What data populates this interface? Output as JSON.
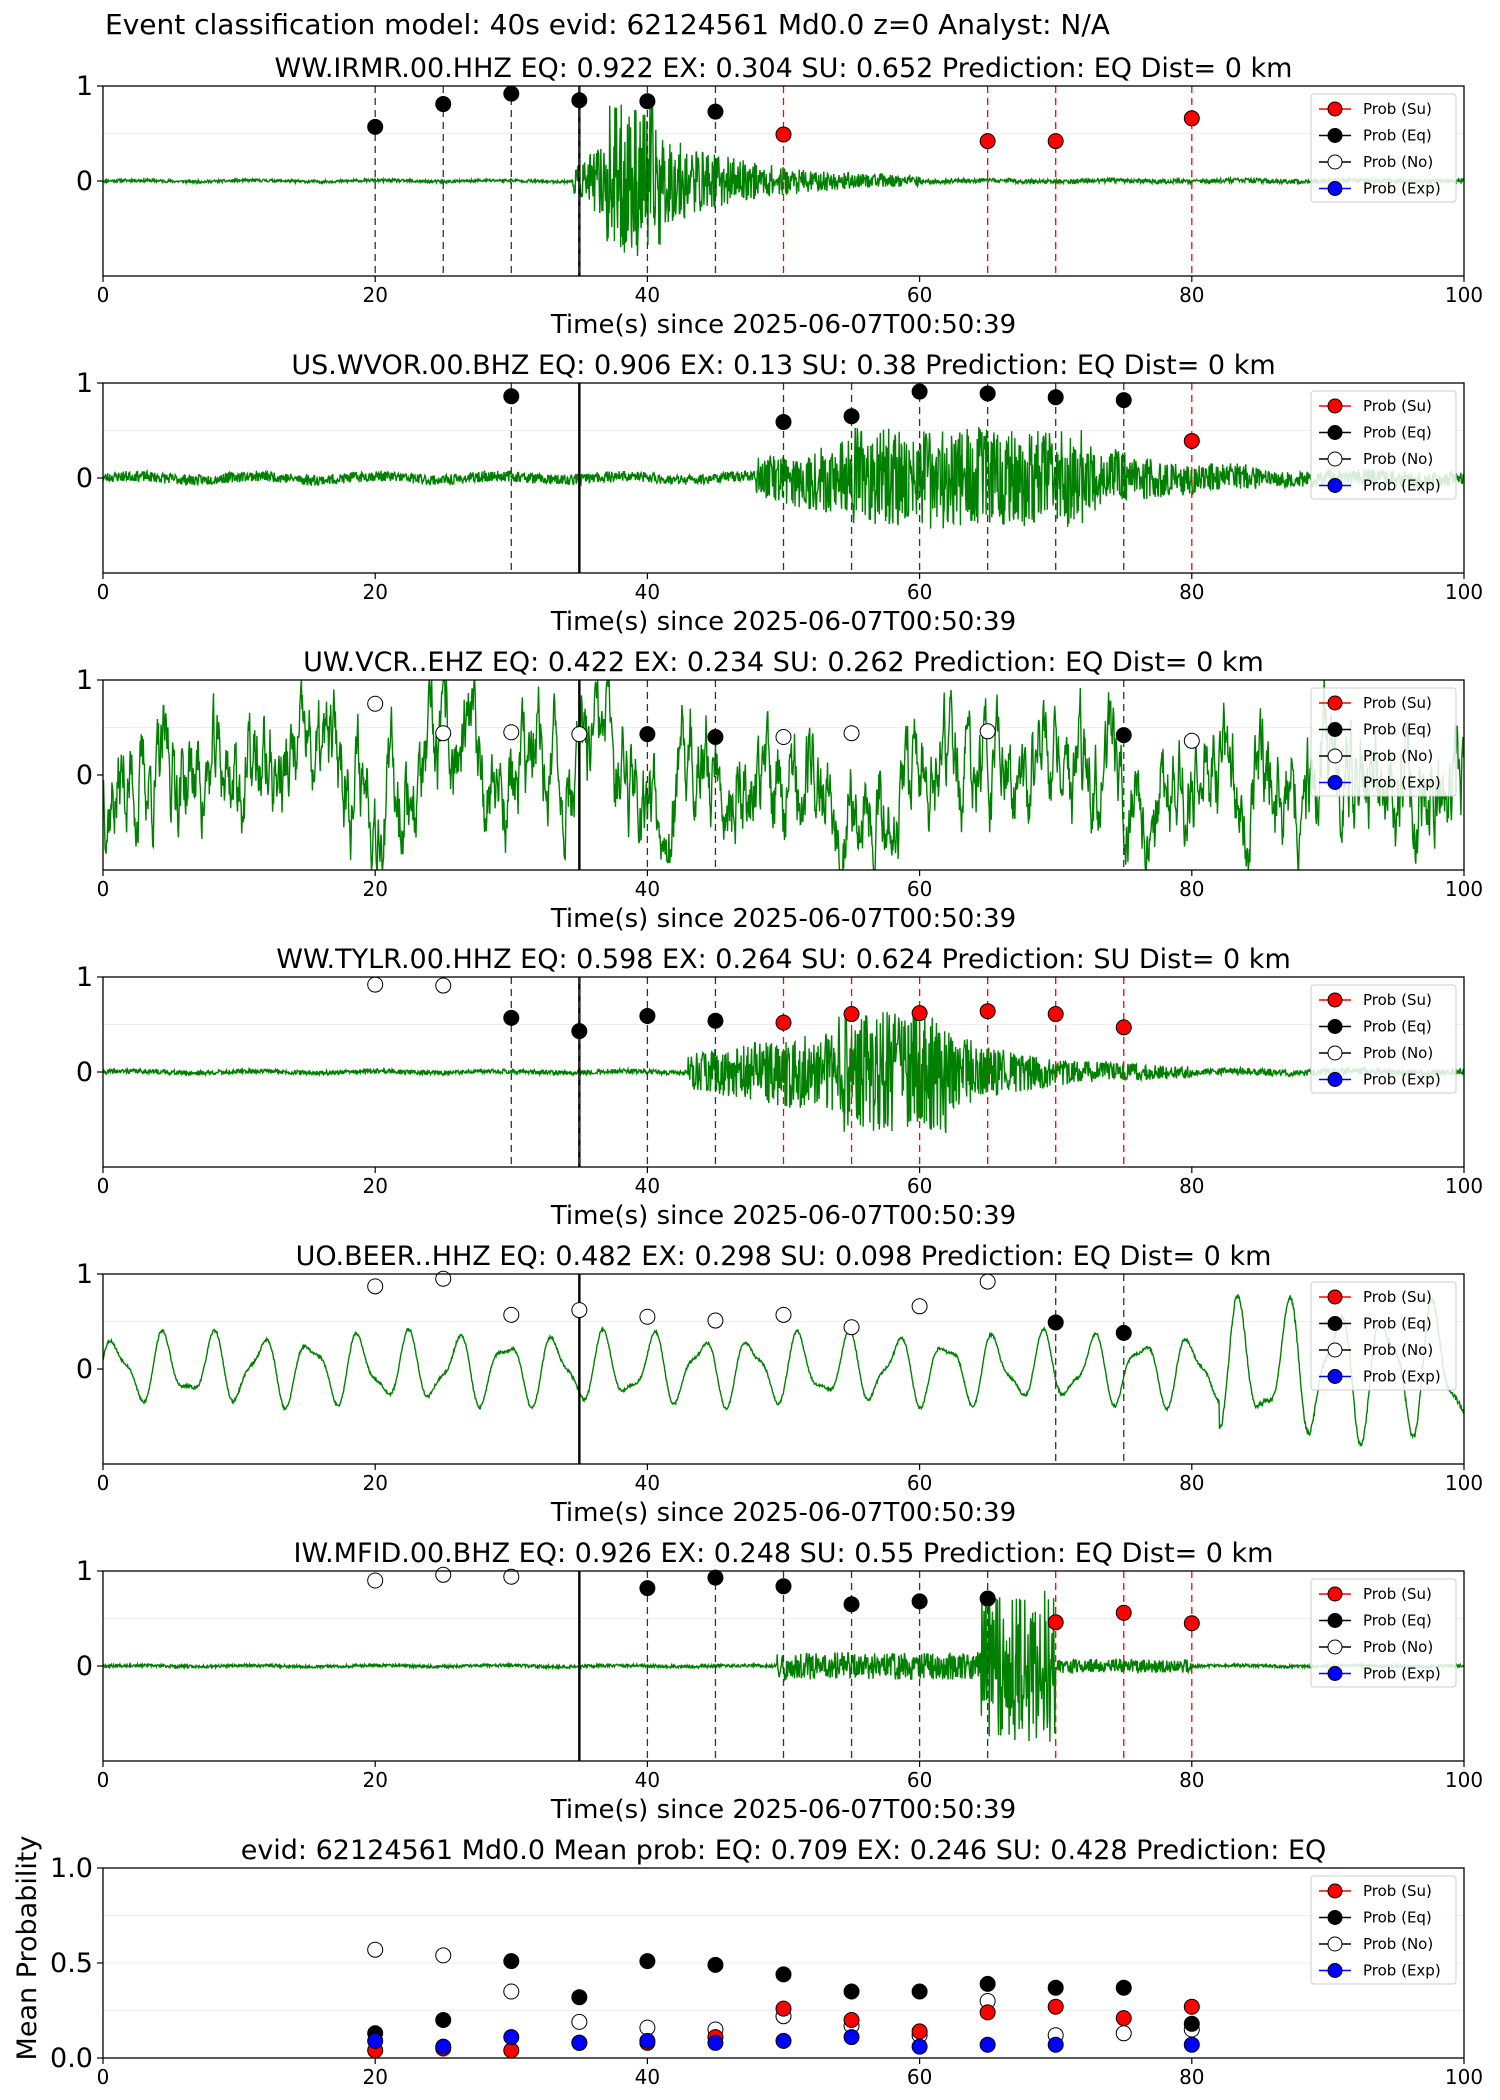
{
  "suptitle": "Event classification model: 40s evid: 62124561 Md0.0 z=0 Analyst: N/A",
  "legend_labels": [
    "Prob (Su)",
    "Prob (Eq)",
    "Prob (No)",
    "Prob (Exp)"
  ],
  "colors": {
    "su": "#ff0000",
    "eq": "#000000",
    "no": "#ffffff",
    "exp": "#0000ff",
    "waveform": "#008000"
  },
  "chart_data": [
    {
      "type": "scatter",
      "title": "WW.IRMR.00.HHZ   EQ: 0.922  EX: 0.304  SU: 0.652   Prediction: EQ    Dist= 0 km",
      "xlabel": "Time(s) since 2025-06-07T00:50:39",
      "xlim": [
        0,
        100
      ],
      "ylim": [
        -1,
        1
      ],
      "xticks": [
        "0",
        "20",
        "40",
        "60",
        "80",
        "100"
      ],
      "yticks": [
        "0",
        "1"
      ],
      "legend": "top-right",
      "waveform": {
        "style": "event",
        "start": 34.5,
        "peak_start": 37,
        "peak_end": 41,
        "decay_end": 60,
        "peak_amp": 1.0,
        "mid_amp": 0.15,
        "noise_amp": 0.02,
        "seed": 11
      },
      "marker_line": 35,
      "points": [
        {
          "x": 20,
          "y": 0.57,
          "cls": "eq"
        },
        {
          "x": 25,
          "y": 0.81,
          "cls": "eq"
        },
        {
          "x": 30,
          "y": 0.92,
          "cls": "eq"
        },
        {
          "x": 35,
          "y": 0.85,
          "cls": "eq"
        },
        {
          "x": 40,
          "y": 0.84,
          "cls": "eq"
        },
        {
          "x": 45,
          "y": 0.73,
          "cls": "eq"
        },
        {
          "x": 50,
          "y": 0.49,
          "cls": "su"
        },
        {
          "x": 65,
          "y": 0.42,
          "cls": "su"
        },
        {
          "x": 70,
          "y": 0.42,
          "cls": "su"
        },
        {
          "x": 80,
          "y": 0.66,
          "cls": "su"
        }
      ]
    },
    {
      "type": "scatter",
      "title": "US.WVOR.00.BHZ   EQ: 0.906  EX: 0.13  SU: 0.38   Prediction: EQ    Dist= 0 km",
      "xlabel": "Time(s) since 2025-06-07T00:50:39",
      "xlim": [
        0,
        100
      ],
      "ylim": [
        -1,
        1
      ],
      "xticks": [
        "0",
        "20",
        "40",
        "60",
        "80",
        "100"
      ],
      "yticks": [
        "0",
        "1"
      ],
      "legend": "top-right",
      "waveform": {
        "style": "event",
        "start": 48,
        "peak_start": 55,
        "peak_end": 72,
        "decay_end": 85,
        "peak_amp": 0.65,
        "mid_amp": 0.25,
        "noise_amp": 0.07,
        "seed": 23
      },
      "marker_line": 35,
      "points": [
        {
          "x": 30,
          "y": 0.86,
          "cls": "eq"
        },
        {
          "x": 50,
          "y": 0.59,
          "cls": "eq"
        },
        {
          "x": 55,
          "y": 0.65,
          "cls": "eq"
        },
        {
          "x": 60,
          "y": 0.91,
          "cls": "eq"
        },
        {
          "x": 65,
          "y": 0.89,
          "cls": "eq"
        },
        {
          "x": 70,
          "y": 0.85,
          "cls": "eq"
        },
        {
          "x": 75,
          "y": 0.82,
          "cls": "eq"
        },
        {
          "x": 80,
          "y": 0.39,
          "cls": "su"
        }
      ]
    },
    {
      "type": "scatter",
      "title": "UW.VCR..EHZ   EQ: 0.422  EX: 0.234  SU: 0.262   Prediction: EQ    Dist= 0 km",
      "xlabel": "Time(s) since 2025-06-07T00:50:39",
      "xlim": [
        0,
        100
      ],
      "ylim": [
        -1,
        1
      ],
      "xticks": [
        "0",
        "20",
        "40",
        "60",
        "80",
        "100"
      ],
      "yticks": [
        "0",
        "1"
      ],
      "legend": "top-right",
      "waveform": {
        "style": "noise",
        "noise_amp": 0.55,
        "seed": 37
      },
      "marker_line": 35,
      "points": [
        {
          "x": 20,
          "y": 0.75,
          "cls": "no"
        },
        {
          "x": 25,
          "y": 0.44,
          "cls": "no"
        },
        {
          "x": 30,
          "y": 0.45,
          "cls": "no"
        },
        {
          "x": 35,
          "y": 0.43,
          "cls": "no"
        },
        {
          "x": 40,
          "y": 0.43,
          "cls": "eq"
        },
        {
          "x": 45,
          "y": 0.4,
          "cls": "eq"
        },
        {
          "x": 50,
          "y": 0.4,
          "cls": "no"
        },
        {
          "x": 55,
          "y": 0.44,
          "cls": "no"
        },
        {
          "x": 65,
          "y": 0.46,
          "cls": "no"
        },
        {
          "x": 75,
          "y": 0.42,
          "cls": "eq"
        },
        {
          "x": 80,
          "y": 0.36,
          "cls": "no"
        }
      ]
    },
    {
      "type": "scatter",
      "title": "WW.TYLR.00.HHZ   EQ: 0.598  EX: 0.264  SU: 0.624   Prediction: SU    Dist= 0 km",
      "xlabel": "Time(s) since 2025-06-07T00:50:39",
      "xlim": [
        0,
        100
      ],
      "ylim": [
        -1,
        1
      ],
      "xticks": [
        "0",
        "20",
        "40",
        "60",
        "80",
        "100"
      ],
      "yticks": [
        "0",
        "1"
      ],
      "legend": "top-right",
      "waveform": {
        "style": "event",
        "start": 43,
        "peak_start": 54,
        "peak_end": 62,
        "decay_end": 80,
        "peak_amp": 0.8,
        "mid_amp": 0.25,
        "noise_amp": 0.03,
        "seed": 41
      },
      "marker_line": 35,
      "points": [
        {
          "x": 20,
          "y": 0.92,
          "cls": "no"
        },
        {
          "x": 25,
          "y": 0.91,
          "cls": "no"
        },
        {
          "x": 30,
          "y": 0.57,
          "cls": "eq"
        },
        {
          "x": 35,
          "y": 0.43,
          "cls": "eq"
        },
        {
          "x": 40,
          "y": 0.59,
          "cls": "eq"
        },
        {
          "x": 45,
          "y": 0.54,
          "cls": "eq"
        },
        {
          "x": 50,
          "y": 0.52,
          "cls": "su"
        },
        {
          "x": 55,
          "y": 0.61,
          "cls": "su"
        },
        {
          "x": 60,
          "y": 0.62,
          "cls": "su"
        },
        {
          "x": 65,
          "y": 0.64,
          "cls": "su"
        },
        {
          "x": 70,
          "y": 0.61,
          "cls": "su"
        },
        {
          "x": 75,
          "y": 0.47,
          "cls": "su"
        }
      ]
    },
    {
      "type": "scatter",
      "title": "UO.BEER..HHZ   EQ: 0.482  EX: 0.298  SU: 0.098   Prediction: EQ    Dist= 0 km",
      "xlabel": "Time(s) since 2025-06-07T00:50:39",
      "xlim": [
        0,
        100
      ],
      "ylim": [
        -1,
        1
      ],
      "xticks": [
        "0",
        "20",
        "40",
        "60",
        "80",
        "100"
      ],
      "yticks": [
        "0",
        "1"
      ],
      "legend": "top-right",
      "waveform": {
        "style": "sine",
        "noise_amp": 0.35,
        "seed": 53
      },
      "marker_line": 35,
      "points": [
        {
          "x": 20,
          "y": 0.87,
          "cls": "no"
        },
        {
          "x": 25,
          "y": 0.95,
          "cls": "no"
        },
        {
          "x": 30,
          "y": 0.57,
          "cls": "no"
        },
        {
          "x": 35,
          "y": 0.62,
          "cls": "no"
        },
        {
          "x": 40,
          "y": 0.55,
          "cls": "no"
        },
        {
          "x": 45,
          "y": 0.51,
          "cls": "no"
        },
        {
          "x": 50,
          "y": 0.57,
          "cls": "no"
        },
        {
          "x": 55,
          "y": 0.44,
          "cls": "no"
        },
        {
          "x": 60,
          "y": 0.66,
          "cls": "no"
        },
        {
          "x": 65,
          "y": 0.92,
          "cls": "no"
        },
        {
          "x": 70,
          "y": 0.49,
          "cls": "eq"
        },
        {
          "x": 75,
          "y": 0.38,
          "cls": "eq"
        }
      ]
    },
    {
      "type": "scatter",
      "title": "IW.MFID.00.BHZ   EQ: 0.926  EX: 0.248  SU: 0.55   Prediction: EQ    Dist= 0 km",
      "xlabel": "Time(s) since 2025-06-07T00:50:39",
      "xlim": [
        0,
        100
      ],
      "ylim": [
        -1,
        1
      ],
      "xticks": [
        "0",
        "20",
        "40",
        "60",
        "80",
        "100"
      ],
      "yticks": [
        "0",
        "1"
      ],
      "legend": "top-right",
      "waveform": {
        "style": "two-event",
        "start": 49.5,
        "peak_start": 64.5,
        "peak_end": 70,
        "decay_end": 80,
        "peak_amp": 1.0,
        "mid_amp": 0.18,
        "noise_amp": 0.02,
        "seed": 67
      },
      "marker_line": 35,
      "points": [
        {
          "x": 20,
          "y": 0.9,
          "cls": "no"
        },
        {
          "x": 25,
          "y": 0.96,
          "cls": "no"
        },
        {
          "x": 30,
          "y": 0.94,
          "cls": "no"
        },
        {
          "x": 40,
          "y": 0.82,
          "cls": "eq"
        },
        {
          "x": 45,
          "y": 0.93,
          "cls": "eq"
        },
        {
          "x": 50,
          "y": 0.84,
          "cls": "eq"
        },
        {
          "x": 55,
          "y": 0.65,
          "cls": "eq"
        },
        {
          "x": 60,
          "y": 0.68,
          "cls": "eq"
        },
        {
          "x": 65,
          "y": 0.71,
          "cls": "eq"
        },
        {
          "x": 70,
          "y": 0.46,
          "cls": "su"
        },
        {
          "x": 75,
          "y": 0.56,
          "cls": "su"
        },
        {
          "x": 80,
          "y": 0.45,
          "cls": "su"
        }
      ]
    },
    {
      "type": "scatter",
      "title": "evid: 62124561  Md0.0   Mean prob:   EQ: 0.709  EX: 0.246  SU: 0.428   Prediction: EQ",
      "xlabel": "",
      "ylabel": "Mean Probability",
      "xlim": [
        0,
        100
      ],
      "ylim": [
        0,
        1
      ],
      "xticks": [
        "0",
        "20",
        "40",
        "60",
        "80",
        "100"
      ],
      "yticks": [
        "0.0",
        "0.5",
        "1.0"
      ],
      "legend": "top-right",
      "x": [
        20,
        25,
        30,
        35,
        40,
        45,
        50,
        55,
        60,
        65,
        70,
        75,
        80
      ],
      "series": [
        {
          "name": "Prob (No)",
          "cls": "no",
          "values": [
            0.57,
            0.54,
            0.35,
            0.19,
            0.16,
            0.15,
            0.22,
            0.17,
            0.12,
            0.3,
            0.12,
            0.13,
            0.15
          ]
        },
        {
          "name": "Prob (Eq)",
          "cls": "eq",
          "values": [
            0.13,
            0.2,
            0.51,
            0.32,
            0.51,
            0.49,
            0.44,
            0.35,
            0.35,
            0.39,
            0.37,
            0.37,
            0.18
          ]
        },
        {
          "name": "Prob (Su)",
          "cls": "su",
          "values": [
            0.04,
            0.05,
            0.04,
            0.08,
            0.08,
            0.11,
            0.26,
            0.2,
            0.14,
            0.24,
            0.27,
            0.21,
            0.27
          ]
        },
        {
          "name": "Prob (Exp)",
          "cls": "exp",
          "values": [
            0.09,
            0.06,
            0.11,
            0.08,
            0.09,
            0.08,
            0.09,
            0.11,
            0.06,
            0.07,
            0.07,
            null,
            0.07
          ]
        }
      ]
    }
  ]
}
